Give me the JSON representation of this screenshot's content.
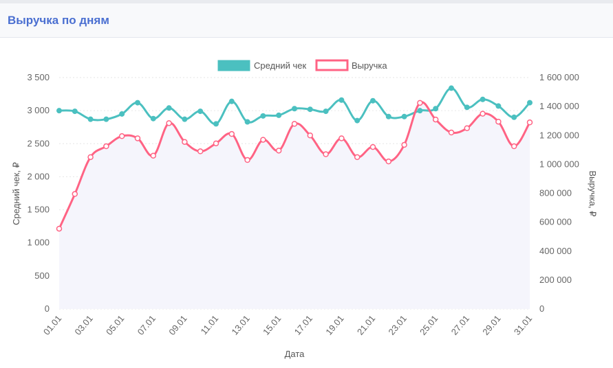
{
  "panel": {
    "title": "Выручка по дням"
  },
  "chart_data": {
    "type": "line",
    "xlabel": "Дата",
    "ylabel_left": "Средний чек, ₽",
    "ylabel_right": "Выручка, ₽",
    "y_left_lim": [
      0,
      3500
    ],
    "y_right_lim": [
      0,
      1600000
    ],
    "y_left_ticks": [
      "0",
      "500",
      "1 000",
      "1 500",
      "2 000",
      "2 500",
      "3 000",
      "3 500"
    ],
    "y_right_ticks": [
      "0",
      "200 000",
      "400 000",
      "600 000",
      "800 000",
      "1 000 000",
      "1 200 000",
      "1 400 000",
      "1 600 000"
    ],
    "categories": [
      "01.01",
      "02.01",
      "03.01",
      "04.01",
      "05.01",
      "06.01",
      "07.01",
      "08.01",
      "09.01",
      "10.01",
      "11.01",
      "12.01",
      "13.01",
      "14.01",
      "15.01",
      "16.01",
      "17.01",
      "18.01",
      "19.01",
      "20.01",
      "21.01",
      "22.01",
      "23.01",
      "24.01",
      "25.01",
      "26.01",
      "27.01",
      "28.01",
      "29.01",
      "30.01",
      "31.01"
    ],
    "x_tick_labels": [
      "01.01",
      "03.01",
      "05.01",
      "07.01",
      "09.01",
      "11.01",
      "13.01",
      "15.01",
      "17.01",
      "19.01",
      "21.01",
      "23.01",
      "25.01",
      "27.01",
      "29.01",
      "31.01"
    ],
    "legend_position": "top",
    "grid": true,
    "series": [
      {
        "name": "Средний чек",
        "axis": "left",
        "color": "#4bc0c0",
        "values": [
          3000,
          2990,
          2870,
          2870,
          2950,
          3120,
          2880,
          3040,
          2870,
          2990,
          2800,
          3140,
          2830,
          2920,
          2930,
          3030,
          3020,
          2990,
          3160,
          2850,
          3150,
          2910,
          2910,
          3000,
          3030,
          3340,
          3050,
          3170,
          3070,
          2900,
          3120
        ]
      },
      {
        "name": "Выручка",
        "axis": "right",
        "color": "#ff6384",
        "fill": "#f5f5fc",
        "values": [
          555000,
          795000,
          1050000,
          1125000,
          1195000,
          1180000,
          1060000,
          1285000,
          1155000,
          1090000,
          1145000,
          1210000,
          1030000,
          1170000,
          1095000,
          1280000,
          1200000,
          1070000,
          1180000,
          1050000,
          1120000,
          1020000,
          1135000,
          1425000,
          1310000,
          1220000,
          1250000,
          1350000,
          1295000,
          1125000,
          1290000
        ]
      }
    ]
  }
}
